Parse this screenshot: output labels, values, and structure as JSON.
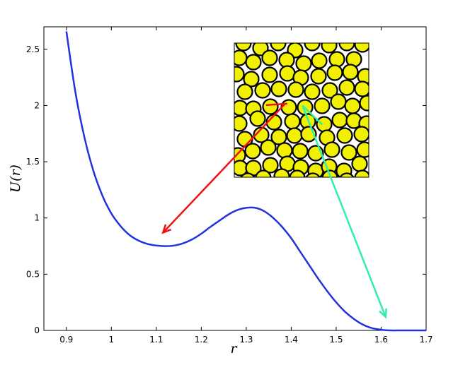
{
  "chart_data": {
    "type": "line",
    "title": "",
    "xlabel": "r",
    "ylabel": "U(r)",
    "xlim": [
      0.85,
      1.7
    ],
    "ylim": [
      0,
      2.7
    ],
    "grid": false,
    "x_ticks": [
      "0.9",
      "1",
      "1.1",
      "1.2",
      "1.3",
      "1.4",
      "1.5",
      "1.6",
      "1.7"
    ],
    "y_ticks": [
      "0",
      "0.5",
      "1",
      "1.5",
      "2",
      "2.5"
    ],
    "series": [
      {
        "color": "#2233dd",
        "x": [
          0.9,
          0.92,
          0.94,
          0.96,
          0.98,
          1.0,
          1.02,
          1.04,
          1.06,
          1.08,
          1.1,
          1.12,
          1.14,
          1.16,
          1.18,
          1.2,
          1.22,
          1.24,
          1.26,
          1.28,
          1.3,
          1.32,
          1.34,
          1.36,
          1.38,
          1.4,
          1.42,
          1.44,
          1.46,
          1.48,
          1.5,
          1.52,
          1.54,
          1.56,
          1.58,
          1.6,
          1.62,
          1.65,
          1.7
        ],
        "y": [
          2.66,
          2.12,
          1.72,
          1.42,
          1.2,
          1.04,
          0.93,
          0.85,
          0.8,
          0.77,
          0.755,
          0.75,
          0.755,
          0.775,
          0.81,
          0.86,
          0.92,
          0.975,
          1.03,
          1.07,
          1.09,
          1.09,
          1.06,
          1.0,
          0.92,
          0.82,
          0.7,
          0.58,
          0.46,
          0.35,
          0.25,
          0.165,
          0.1,
          0.05,
          0.02,
          0.006,
          0.0,
          0.0,
          0.0
        ]
      }
    ],
    "inset": {
      "description_colors": {
        "particle_fill": "#f0f000",
        "particle_stroke": "#000000"
      }
    },
    "annotations": [
      {
        "color": "#ee1111",
        "from": [
          1.385,
          2.01
        ],
        "to": [
          1.115,
          0.87
        ]
      },
      {
        "color": "#33eeaa",
        "from": [
          1.425,
          2.0
        ],
        "to": [
          1.61,
          0.12
        ]
      }
    ]
  }
}
